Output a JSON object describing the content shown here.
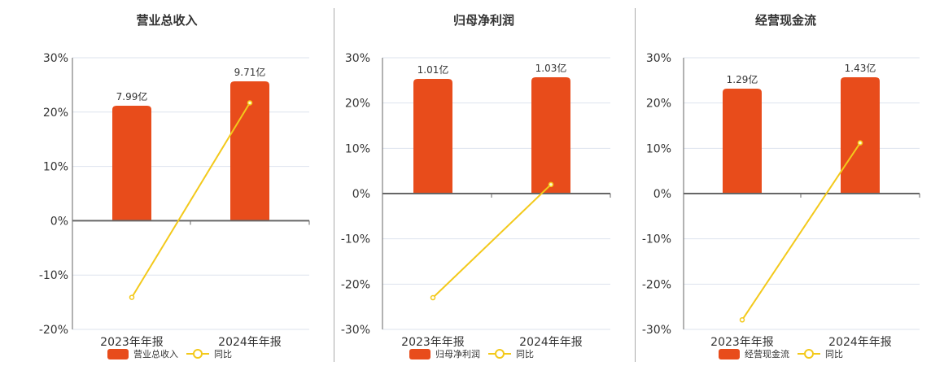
{
  "colors": {
    "bar": "#e84c1b",
    "line": "#f3c91b",
    "grid": "#dde3ee",
    "axis": "#666666",
    "text": "#333333"
  },
  "legend": {
    "line_label": "同比"
  },
  "chart_data": [
    {
      "type": "bar",
      "title": "营业总收入",
      "categories": [
        "2023年年报",
        "2024年年报"
      ],
      "series": [
        {
          "name": "营业总收入",
          "type": "bar",
          "labels": [
            "7.99亿",
            "9.71亿"
          ],
          "values": [
            7.99,
            9.71
          ],
          "unit": "亿"
        },
        {
          "name": "同比",
          "type": "line",
          "values": [
            -14.1,
            21.7
          ],
          "unit": "%"
        }
      ],
      "yticks": [
        "30%",
        "20%",
        "10%",
        "0%",
        "-10%",
        "-20%"
      ],
      "ylim": [
        -20,
        30
      ],
      "grid": true,
      "legend_position": "bottom"
    },
    {
      "type": "bar",
      "title": "归母净利润",
      "categories": [
        "2023年年报",
        "2024年年报"
      ],
      "series": [
        {
          "name": "归母净利润",
          "type": "bar",
          "labels": [
            "1.01亿",
            "1.03亿"
          ],
          "values": [
            1.01,
            1.03
          ],
          "unit": "亿"
        },
        {
          "name": "同比",
          "type": "line",
          "values": [
            -23.0,
            2.0
          ],
          "unit": "%"
        }
      ],
      "yticks": [
        "30%",
        "20%",
        "10%",
        "0%",
        "-10%",
        "-20%",
        "-30%"
      ],
      "ylim": [
        -30,
        30
      ],
      "grid": true,
      "legend_position": "bottom"
    },
    {
      "type": "bar",
      "title": "经营现金流",
      "categories": [
        "2023年年报",
        "2024年年报"
      ],
      "series": [
        {
          "name": "经营现金流",
          "type": "bar",
          "labels": [
            "1.29亿",
            "1.43亿"
          ],
          "values": [
            1.29,
            1.43
          ],
          "unit": "亿"
        },
        {
          "name": "同比",
          "type": "line",
          "values": [
            -27.9,
            11.2
          ],
          "unit": "%"
        }
      ],
      "yticks": [
        "30%",
        "20%",
        "10%",
        "0%",
        "-10%",
        "-20%",
        "-30%"
      ],
      "ylim": [
        -30,
        30
      ],
      "grid": true,
      "legend_position": "bottom"
    }
  ]
}
